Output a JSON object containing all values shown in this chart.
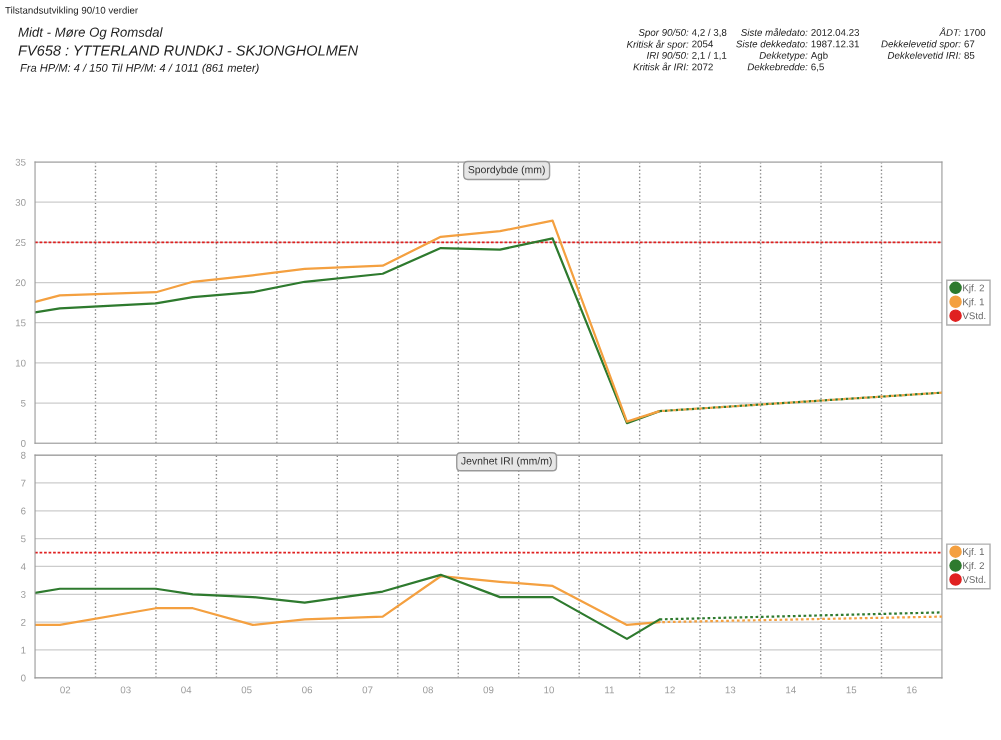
{
  "chart_data": [
    {
      "type": "line",
      "title": "Spordybde (mm)",
      "annotations": [
        "Tilstandsutvikling 90/10 verdier",
        "Midt - Møre Og Romsdal",
        "FV658 : YTTERLAND RUNDKJ - SKJONGHOLMEN",
        "Fra HP/M: 4 / 150 Til HP/M: 4 / 1011 (861 meter)",
        "Spor 90/50: 4,2 / 3,8",
        "Kritisk år spor: 2054",
        "IRI 90/50: 2,1 / 1,1",
        "Kritisk år IRI: 2072",
        "Siste måledato: 2012.04.23",
        "Siste dekkedato: 1987.12.31",
        "Dekketype: Agb",
        "Dekkebredde: 6,5",
        "ÅDT: 1700",
        "Dekkelevetid spor: 67",
        "Dekkelevetid IRI: 85"
      ],
      "series": [
        {
          "name": "Kjf. 2",
          "color": "#2e7a2e",
          "x": [
            1.5,
            1.91,
            3.5,
            4.11,
            5.1,
            5.96,
            7.25,
            8.21,
            9.19,
            10.06,
            11.29,
            11.83
          ],
          "values": [
            16.3,
            16.8,
            17.4,
            18.2,
            18.8,
            20.1,
            21.1,
            24.3,
            24.1,
            25.5,
            2.5,
            4.0
          ]
        },
        {
          "name": "Kjf. 1",
          "color": "#f4a040",
          "x": [
            1.5,
            1.91,
            3.5,
            4.11,
            5.1,
            5.96,
            7.25,
            8.21,
            9.19,
            10.06,
            11.29,
            11.83
          ],
          "values": [
            17.6,
            18.4,
            18.8,
            20.1,
            20.9,
            21.7,
            22.1,
            25.7,
            26.4,
            27.7,
            2.7,
            4.0
          ]
        },
        {
          "color": "#2e7a2e",
          "line_style": "dotted",
          "x": [
            11.83,
            16.5
          ],
          "values": [
            4.0,
            6.3
          ]
        },
        {
          "color": "#f4a040",
          "line_style": "dotted",
          "x": [
            11.83,
            16.5
          ],
          "values": [
            4.0,
            6.3
          ]
        }
      ],
      "ref_lines": [
        {
          "axis": "y",
          "value": 25,
          "label": "VStd.",
          "color": "#e02020",
          "line_style": "dotted"
        }
      ],
      "xlim": [
        1.5,
        16.5
      ],
      "xticks": [
        {
          "value": 2,
          "label": "02"
        },
        {
          "value": 2.5,
          "label": null
        },
        {
          "value": 3,
          "label": "03"
        },
        {
          "value": 3.5,
          "label": null
        },
        {
          "value": 4,
          "label": "04"
        },
        {
          "value": 4.5,
          "label": null
        },
        {
          "value": 5,
          "label": "05"
        },
        {
          "value": 5.5,
          "label": null
        },
        {
          "value": 6,
          "label": "06"
        },
        {
          "value": 6.5,
          "label": null
        },
        {
          "value": 7,
          "label": "07"
        },
        {
          "value": 7.5,
          "label": null
        },
        {
          "value": 8,
          "label": "08"
        },
        {
          "value": 8.5,
          "label": null
        },
        {
          "value": 9,
          "label": "09"
        },
        {
          "value": 9.5,
          "label": null
        },
        {
          "value": 10,
          "label": "10"
        },
        {
          "value": 10.5,
          "label": null
        },
        {
          "value": 11,
          "label": "11"
        },
        {
          "value": 11.5,
          "label": null
        },
        {
          "value": 12,
          "label": "12"
        },
        {
          "value": 12.5,
          "label": null
        },
        {
          "value": 13,
          "label": "13"
        },
        {
          "value": 13.5,
          "label": null
        },
        {
          "value": 14,
          "label": "14"
        },
        {
          "value": 14.5,
          "label": null
        },
        {
          "value": 15,
          "label": "15"
        },
        {
          "value": 15.5,
          "label": null
        },
        {
          "value": 16,
          "label": "16"
        }
      ],
      "ylim": [
        0,
        35
      ],
      "yticks": [
        0,
        5,
        10,
        15,
        20,
        25,
        30,
        35
      ],
      "tick_labels": "y",
      "grid": true,
      "legend": "right",
      "marker": "none"
    },
    {
      "type": "line",
      "title": "Jevnhet IRI (mm/m)",
      "series": [
        {
          "name": "Kjf. 1",
          "color": "#f4a040",
          "x": [
            1.5,
            1.91,
            3.5,
            4.11,
            5.1,
            5.96,
            7.25,
            8.21,
            9.19,
            10.06,
            11.29,
            11.83
          ],
          "values": [
            1.9,
            1.9,
            2.5,
            2.5,
            1.9,
            2.1,
            2.2,
            3.65,
            3.45,
            3.3,
            1.9,
            2.0
          ]
        },
        {
          "name": "Kjf. 2",
          "color": "#2e7a2e",
          "x": [
            1.5,
            1.91,
            3.5,
            4.11,
            5.1,
            5.96,
            7.25,
            8.21,
            9.19,
            10.06,
            11.29,
            11.83
          ],
          "values": [
            3.05,
            3.2,
            3.2,
            3.0,
            2.9,
            2.7,
            3.1,
            3.7,
            2.9,
            2.9,
            1.4,
            2.1
          ]
        },
        {
          "color": "#2e7a2e",
          "line_style": "dotted",
          "x": [
            11.83,
            16.5
          ],
          "values": [
            2.1,
            2.35
          ]
        },
        {
          "color": "#f4a040",
          "line_style": "dotted",
          "x": [
            11.83,
            16.5
          ],
          "values": [
            2.0,
            2.2
          ]
        }
      ],
      "ref_lines": [
        {
          "axis": "y",
          "value": 4.5,
          "label": "VStd.",
          "color": "#e02020",
          "line_style": "dotted"
        }
      ],
      "xlim": [
        1.5,
        16.5
      ],
      "xticks": [
        {
          "value": 2,
          "label": "02"
        },
        {
          "value": 2.5,
          "label": null
        },
        {
          "value": 3,
          "label": "03"
        },
        {
          "value": 3.5,
          "label": null
        },
        {
          "value": 4,
          "label": "04"
        },
        {
          "value": 4.5,
          "label": null
        },
        {
          "value": 5,
          "label": "05"
        },
        {
          "value": 5.5,
          "label": null
        },
        {
          "value": 6,
          "label": "06"
        },
        {
          "value": 6.5,
          "label": null
        },
        {
          "value": 7,
          "label": "07"
        },
        {
          "value": 7.5,
          "label": null
        },
        {
          "value": 8,
          "label": "08"
        },
        {
          "value": 8.5,
          "label": null
        },
        {
          "value": 9,
          "label": "09"
        },
        {
          "value": 9.5,
          "label": null
        },
        {
          "value": 10,
          "label": "10"
        },
        {
          "value": 10.5,
          "label": null
        },
        {
          "value": 11,
          "label": "11"
        },
        {
          "value": 11.5,
          "label": null
        },
        {
          "value": 12,
          "label": "12"
        },
        {
          "value": 12.5,
          "label": null
        },
        {
          "value": 13,
          "label": "13"
        },
        {
          "value": 13.5,
          "label": null
        },
        {
          "value": 14,
          "label": "14"
        },
        {
          "value": 14.5,
          "label": null
        },
        {
          "value": 15,
          "label": "15"
        },
        {
          "value": 15.5,
          "label": null
        },
        {
          "value": 16,
          "label": "16"
        }
      ],
      "ylim": [
        0,
        8
      ],
      "yticks": [
        0,
        1,
        2,
        3,
        4,
        5,
        6,
        7,
        8
      ],
      "grid": true,
      "legend": "right",
      "marker": "none"
    }
  ]
}
